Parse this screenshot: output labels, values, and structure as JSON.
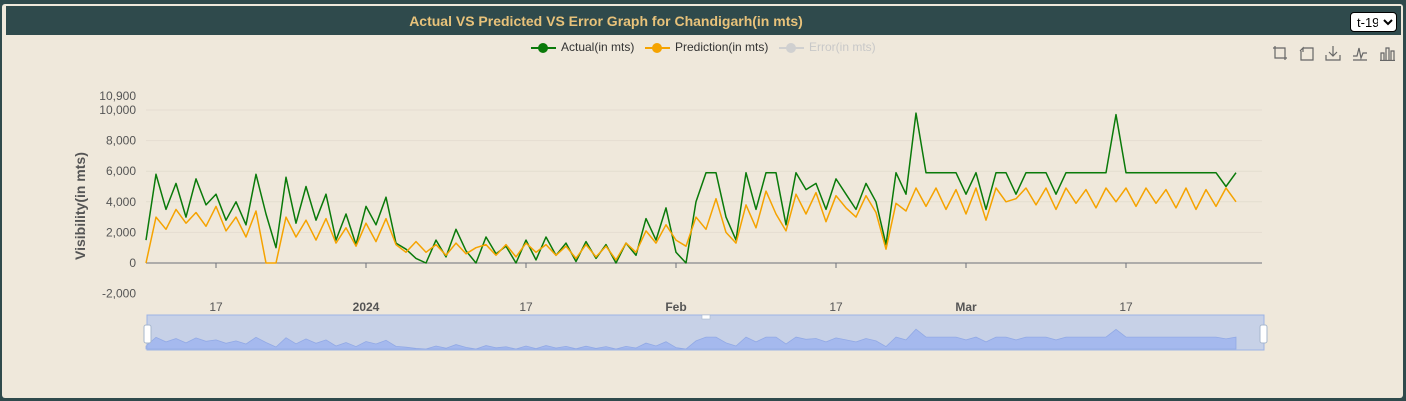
{
  "header": {
    "title": "Actual VS Predicted VS Error Graph for Chandigarh(in mts)"
  },
  "selector": {
    "value": "t-19",
    "options": [
      "t-19"
    ]
  },
  "toolbox": {
    "icons": [
      "zoom-icon",
      "zoom-reset-icon",
      "download-icon",
      "line-chart-icon",
      "bar-chart-icon"
    ]
  },
  "chart_data": {
    "type": "line",
    "title": "Actual VS Predicted VS Error Graph for Chandigarh(in mts)",
    "ylabel": "Visibility(in mts)",
    "xlabel": "",
    "ylim": [
      -2000,
      10900
    ],
    "yticks": [
      "10,900",
      "10,000",
      "8,000",
      "6,000",
      "4,000",
      "2,000",
      "0",
      "-2,000"
    ],
    "xticks": [
      {
        "label": "17",
        "bold": false
      },
      {
        "label": "2024",
        "bold": true
      },
      {
        "label": "17",
        "bold": false
      },
      {
        "label": "Feb",
        "bold": true
      },
      {
        "label": "17",
        "bold": false
      },
      {
        "label": "Mar",
        "bold": true
      },
      {
        "label": "17",
        "bold": false
      }
    ],
    "x_range": [
      "2023-12-10",
      "2024-03-31"
    ],
    "legend_position": "top-center",
    "grid": true,
    "series": [
      {
        "name": "Actual(in mts)",
        "color": "#0a7a0a",
        "visible": true,
        "points": [
          [
            "2023-12-10",
            1500
          ],
          [
            "2023-12-11",
            5800
          ],
          [
            "2023-12-12",
            3500
          ],
          [
            "2023-12-13",
            5200
          ],
          [
            "2023-12-14",
            3000
          ],
          [
            "2023-12-15",
            5500
          ],
          [
            "2023-12-16",
            3800
          ],
          [
            "2023-12-17",
            4500
          ],
          [
            "2023-12-18",
            2800
          ],
          [
            "2023-12-19",
            4000
          ],
          [
            "2023-12-20",
            2500
          ],
          [
            "2023-12-21",
            5800
          ],
          [
            "2023-12-22",
            3200
          ],
          [
            "2023-12-23",
            1000
          ],
          [
            "2023-12-24",
            5600
          ],
          [
            "2023-12-25",
            2600
          ],
          [
            "2023-12-26",
            5000
          ],
          [
            "2023-12-27",
            2800
          ],
          [
            "2023-12-28",
            4500
          ],
          [
            "2023-12-29",
            1500
          ],
          [
            "2023-12-30",
            3200
          ],
          [
            "2023-12-31",
            1200
          ],
          [
            "2024-01-01",
            3700
          ],
          [
            "2024-01-02",
            2500
          ],
          [
            "2024-01-03",
            4300
          ],
          [
            "2024-01-04",
            1300
          ],
          [
            "2024-01-05",
            900
          ],
          [
            "2024-01-06",
            300
          ],
          [
            "2024-01-07",
            0
          ],
          [
            "2024-01-08",
            1500
          ],
          [
            "2024-01-09",
            400
          ],
          [
            "2024-01-10",
            2200
          ],
          [
            "2024-01-11",
            800
          ],
          [
            "2024-01-12",
            0
          ],
          [
            "2024-01-13",
            1700
          ],
          [
            "2024-01-14",
            600
          ],
          [
            "2024-01-15",
            1100
          ],
          [
            "2024-01-16",
            0
          ],
          [
            "2024-01-17",
            1500
          ],
          [
            "2024-01-18",
            200
          ],
          [
            "2024-01-19",
            1700
          ],
          [
            "2024-01-20",
            500
          ],
          [
            "2024-01-21",
            1300
          ],
          [
            "2024-01-22",
            100
          ],
          [
            "2024-01-23",
            1400
          ],
          [
            "2024-01-24",
            300
          ],
          [
            "2024-01-25",
            1200
          ],
          [
            "2024-01-26",
            0
          ],
          [
            "2024-01-27",
            1300
          ],
          [
            "2024-01-28",
            500
          ],
          [
            "2024-01-29",
            2900
          ],
          [
            "2024-01-30",
            1500
          ],
          [
            "2024-01-31",
            3600
          ],
          [
            "2024-02-01",
            700
          ],
          [
            "2024-02-02",
            0
          ],
          [
            "2024-02-03",
            4000
          ],
          [
            "2024-02-04",
            5900
          ],
          [
            "2024-02-05",
            5900
          ],
          [
            "2024-02-06",
            3000
          ],
          [
            "2024-02-07",
            1500
          ],
          [
            "2024-02-08",
            5900
          ],
          [
            "2024-02-09",
            3500
          ],
          [
            "2024-02-10",
            5900
          ],
          [
            "2024-02-11",
            5900
          ],
          [
            "2024-02-12",
            2500
          ],
          [
            "2024-02-13",
            5900
          ],
          [
            "2024-02-14",
            4800
          ],
          [
            "2024-02-15",
            5200
          ],
          [
            "2024-02-16",
            3500
          ],
          [
            "2024-02-17",
            5500
          ],
          [
            "2024-02-18",
            4500
          ],
          [
            "2024-02-19",
            3500
          ],
          [
            "2024-02-20",
            5200
          ],
          [
            "2024-02-21",
            4000
          ],
          [
            "2024-02-22",
            1200
          ],
          [
            "2024-02-23",
            5900
          ],
          [
            "2024-02-24",
            4500
          ],
          [
            "2024-02-25",
            9800
          ],
          [
            "2024-02-26",
            5900
          ],
          [
            "2024-02-27",
            5900
          ],
          [
            "2024-02-28",
            5900
          ],
          [
            "2024-02-29",
            5900
          ],
          [
            "2024-03-01",
            4500
          ],
          [
            "2024-03-02",
            5900
          ],
          [
            "2024-03-03",
            3500
          ],
          [
            "2024-03-04",
            5900
          ],
          [
            "2024-03-05",
            5900
          ],
          [
            "2024-03-06",
            4500
          ],
          [
            "2024-03-07",
            5900
          ],
          [
            "2024-03-08",
            5900
          ],
          [
            "2024-03-09",
            5900
          ],
          [
            "2024-03-10",
            4500
          ],
          [
            "2024-03-11",
            5900
          ],
          [
            "2024-03-12",
            5900
          ],
          [
            "2024-03-13",
            5900
          ],
          [
            "2024-03-14",
            5900
          ],
          [
            "2024-03-15",
            5900
          ],
          [
            "2024-03-16",
            9700
          ],
          [
            "2024-03-17",
            5900
          ],
          [
            "2024-03-18",
            5900
          ],
          [
            "2024-03-19",
            5900
          ],
          [
            "2024-03-20",
            5900
          ],
          [
            "2024-03-21",
            5900
          ],
          [
            "2024-03-22",
            5900
          ],
          [
            "2024-03-23",
            5900
          ],
          [
            "2024-03-24",
            5900
          ],
          [
            "2024-03-25",
            5900
          ],
          [
            "2024-03-26",
            5900
          ],
          [
            "2024-03-27",
            5000
          ],
          [
            "2024-03-28",
            5900
          ]
        ]
      },
      {
        "name": "Prediction(in mts)",
        "color": "#f5a300",
        "visible": true,
        "points": [
          [
            "2023-12-10",
            0
          ],
          [
            "2023-12-11",
            3000
          ],
          [
            "2023-12-12",
            2200
          ],
          [
            "2023-12-13",
            3500
          ],
          [
            "2023-12-14",
            2600
          ],
          [
            "2023-12-15",
            3300
          ],
          [
            "2023-12-16",
            2400
          ],
          [
            "2023-12-17",
            3700
          ],
          [
            "2023-12-18",
            2100
          ],
          [
            "2023-12-19",
            3000
          ],
          [
            "2023-12-20",
            1700
          ],
          [
            "2023-12-21",
            3400
          ],
          [
            "2023-12-22",
            0
          ],
          [
            "2023-12-23",
            0
          ],
          [
            "2023-12-24",
            3000
          ],
          [
            "2023-12-25",
            1700
          ],
          [
            "2023-12-26",
            2800
          ],
          [
            "2023-12-27",
            1500
          ],
          [
            "2023-12-28",
            2900
          ],
          [
            "2023-12-29",
            1300
          ],
          [
            "2023-12-30",
            2300
          ],
          [
            "2023-12-31",
            1100
          ],
          [
            "2024-01-01",
            2600
          ],
          [
            "2024-01-02",
            1400
          ],
          [
            "2024-01-03",
            2900
          ],
          [
            "2024-01-04",
            1200
          ],
          [
            "2024-01-05",
            700
          ],
          [
            "2024-01-06",
            1400
          ],
          [
            "2024-01-07",
            700
          ],
          [
            "2024-01-08",
            1200
          ],
          [
            "2024-01-09",
            500
          ],
          [
            "2024-01-10",
            1300
          ],
          [
            "2024-01-11",
            600
          ],
          [
            "2024-01-12",
            1000
          ],
          [
            "2024-01-13",
            1200
          ],
          [
            "2024-01-14",
            500
          ],
          [
            "2024-01-15",
            1200
          ],
          [
            "2024-01-16",
            400
          ],
          [
            "2024-01-17",
            1300
          ],
          [
            "2024-01-18",
            700
          ],
          [
            "2024-01-19",
            1200
          ],
          [
            "2024-01-20",
            500
          ],
          [
            "2024-01-21",
            1100
          ],
          [
            "2024-01-22",
            300
          ],
          [
            "2024-01-23",
            1200
          ],
          [
            "2024-01-24",
            400
          ],
          [
            "2024-01-25",
            1100
          ],
          [
            "2024-01-26",
            200
          ],
          [
            "2024-01-27",
            1300
          ],
          [
            "2024-01-28",
            700
          ],
          [
            "2024-01-29",
            2100
          ],
          [
            "2024-01-30",
            1300
          ],
          [
            "2024-01-31",
            2500
          ],
          [
            "2024-02-01",
            1500
          ],
          [
            "2024-02-02",
            1100
          ],
          [
            "2024-02-03",
            3000
          ],
          [
            "2024-02-04",
            2200
          ],
          [
            "2024-02-05",
            4200
          ],
          [
            "2024-02-06",
            2000
          ],
          [
            "2024-02-07",
            1300
          ],
          [
            "2024-02-08",
            3800
          ],
          [
            "2024-02-09",
            2300
          ],
          [
            "2024-02-10",
            4700
          ],
          [
            "2024-02-11",
            3200
          ],
          [
            "2024-02-12",
            2100
          ],
          [
            "2024-02-13",
            4500
          ],
          [
            "2024-02-14",
            3200
          ],
          [
            "2024-02-15",
            4600
          ],
          [
            "2024-02-16",
            2700
          ],
          [
            "2024-02-17",
            4400
          ],
          [
            "2024-02-18",
            3600
          ],
          [
            "2024-02-19",
            3000
          ],
          [
            "2024-02-20",
            4400
          ],
          [
            "2024-02-21",
            3300
          ],
          [
            "2024-02-22",
            900
          ],
          [
            "2024-02-23",
            3900
          ],
          [
            "2024-02-24",
            3400
          ],
          [
            "2024-02-25",
            4900
          ],
          [
            "2024-02-26",
            3700
          ],
          [
            "2024-02-27",
            4900
          ],
          [
            "2024-02-28",
            3500
          ],
          [
            "2024-02-29",
            4800
          ],
          [
            "2024-03-01",
            3200
          ],
          [
            "2024-03-02",
            4900
          ],
          [
            "2024-03-03",
            2800
          ],
          [
            "2024-03-04",
            4900
          ],
          [
            "2024-03-05",
            4000
          ],
          [
            "2024-03-06",
            4200
          ],
          [
            "2024-03-07",
            4900
          ],
          [
            "2024-03-08",
            3800
          ],
          [
            "2024-03-09",
            4900
          ],
          [
            "2024-03-10",
            3500
          ],
          [
            "2024-03-11",
            4900
          ],
          [
            "2024-03-12",
            3900
          ],
          [
            "2024-03-13",
            4800
          ],
          [
            "2024-03-14",
            3600
          ],
          [
            "2024-03-15",
            4900
          ],
          [
            "2024-03-16",
            4000
          ],
          [
            "2024-03-17",
            4900
          ],
          [
            "2024-03-18",
            3700
          ],
          [
            "2024-03-19",
            4900
          ],
          [
            "2024-03-20",
            3900
          ],
          [
            "2024-03-21",
            4800
          ],
          [
            "2024-03-22",
            3600
          ],
          [
            "2024-03-23",
            4900
          ],
          [
            "2024-03-24",
            3500
          ],
          [
            "2024-03-25",
            4800
          ],
          [
            "2024-03-26",
            3700
          ],
          [
            "2024-03-27",
            4900
          ],
          [
            "2024-03-28",
            4000
          ]
        ]
      },
      {
        "name": "Error(in mts)",
        "color": "#cccccc",
        "visible": false,
        "points": []
      }
    ]
  }
}
